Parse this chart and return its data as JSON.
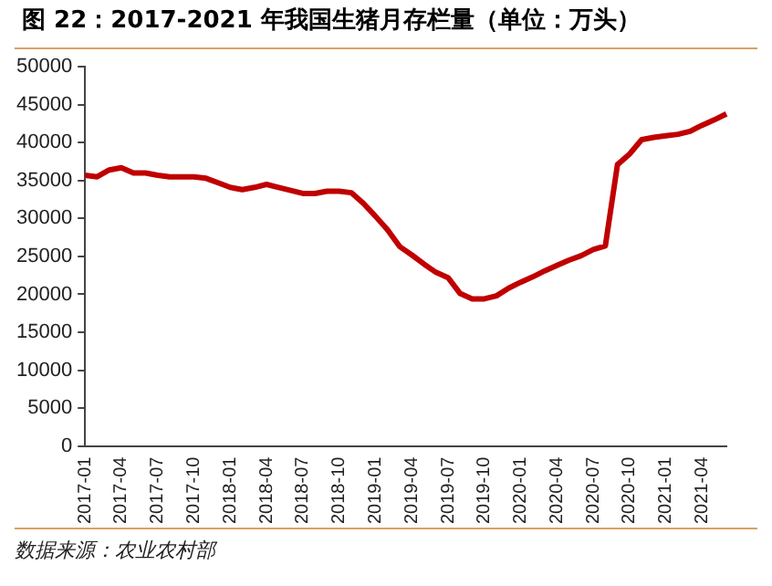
{
  "chart_data": {
    "type": "line",
    "title": "图 22：2017-2021 年我国生猪月存栏量（单位：万头）",
    "categories": [
      "2017-01",
      null,
      null,
      "2017-04",
      null,
      null,
      "2017-07",
      null,
      null,
      "2017-10",
      null,
      null,
      "2018-01",
      null,
      null,
      "2018-04",
      null,
      null,
      "2018-07",
      null,
      null,
      "2018-10",
      null,
      null,
      "2019-01",
      null,
      null,
      "2019-04",
      null,
      null,
      "2019-07",
      null,
      null,
      "2019-10",
      null,
      null,
      "2020-01",
      null,
      null,
      "2020-04",
      null,
      null,
      "2020-07",
      null,
      null,
      "2020-10",
      null,
      null,
      "2021-01",
      null,
      null,
      "2021-04",
      null,
      null
    ],
    "series": [
      {
        "color": "#c00000",
        "values": [
          35700,
          35500,
          36400,
          36700,
          36000,
          36000,
          35700,
          35500,
          35500,
          35500,
          35300,
          34700,
          34100,
          33800,
          34100,
          34500,
          34100,
          33700,
          33300,
          33300,
          33600,
          33600,
          33400,
          32000,
          30300,
          28500,
          26300,
          25200,
          24000,
          22900,
          22200,
          20100,
          19400,
          19400,
          19800,
          20800,
          21600,
          22300,
          23100,
          23800,
          24500,
          25100,
          25900,
          26400,
          37100,
          38500,
          40400,
          40700,
          40900,
          41100,
          41500,
          42300,
          43000,
          43800
        ]
      }
    ],
    "ylim": [
      0,
      50000
    ],
    "yticks": [
      0,
      5000,
      10000,
      15000,
      20000,
      25000,
      30000,
      35000,
      40000,
      45000,
      50000
    ],
    "grid": false,
    "legend": false,
    "marker": "none",
    "line_style": "solid",
    "annotations": [
      "数据来源：农业农村部"
    ]
  }
}
